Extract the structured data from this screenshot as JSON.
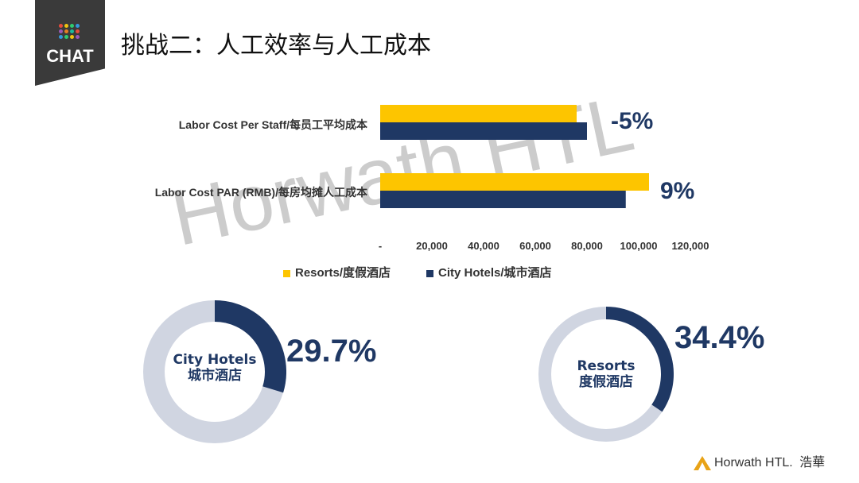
{
  "badge": {
    "text": "CHAT"
  },
  "title": "挑战二：人工效率与人工成本",
  "watermark": "Horwath HTL",
  "colors": {
    "resorts": "#FDC500",
    "city_hotels": "#1F3864",
    "donut_track": "#D0D5E1",
    "accent": "#1F3864"
  },
  "chart_data": [
    {
      "type": "bar",
      "orientation": "horizontal",
      "categories": [
        "Labor Cost Per Staff/每员工平均成本",
        "Labor Cost PAR (RMB)/每房均摊人工成本"
      ],
      "series": [
        {
          "name": "Resorts/度假酒店",
          "values": [
            76000,
            104000
          ]
        },
        {
          "name": "City Hotels/城市酒店",
          "values": [
            80000,
            95000
          ]
        }
      ],
      "xlim": [
        0,
        120000
      ],
      "tick_labels": [
        "-",
        "20,000",
        "40,000",
        "60,000",
        "80,000",
        "100,000",
        "120,000"
      ],
      "annotations": [
        "-5%",
        "9%"
      ],
      "legend": "bottom"
    },
    {
      "type": "pie",
      "variant": "donut",
      "label": "City Hotels\n城市酒店",
      "label_lines": [
        "City Hotels",
        "城市酒店"
      ],
      "value": 29.7,
      "value_label": "29.7%"
    },
    {
      "type": "pie",
      "variant": "donut",
      "label": "Resorts\n度假酒店",
      "label_lines": [
        "Resorts",
        "度假酒店"
      ],
      "value": 34.4,
      "value_label": "34.4%"
    }
  ],
  "footer": {
    "logo_text": "Horwath HTL.",
    "logo_cn": "浩華"
  }
}
